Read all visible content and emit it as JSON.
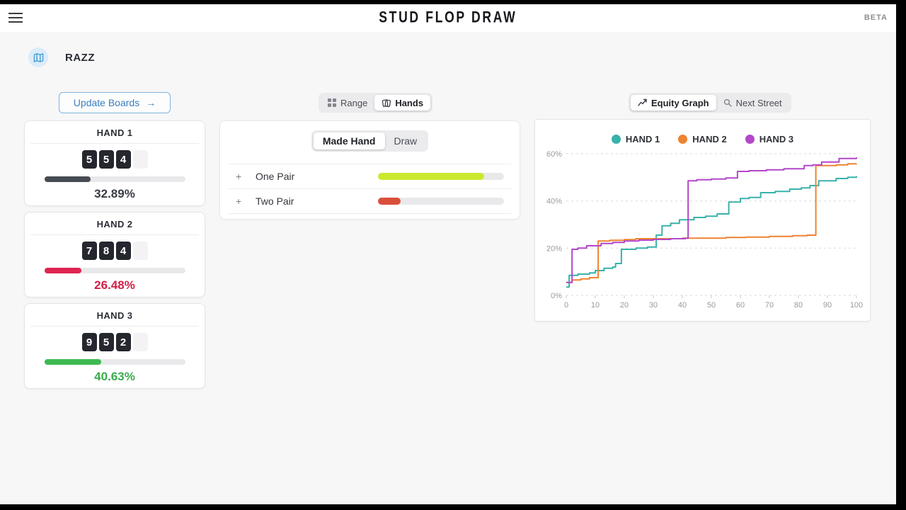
{
  "header": {
    "title": "STUD FLOP DRAW",
    "beta_label": "BETA"
  },
  "game": {
    "label": "RAZZ"
  },
  "toolbar": {
    "update_boards_label": "Update Boards",
    "update_boards_arrow": "→",
    "view_toggle": {
      "options": [
        {
          "label": "Range",
          "icon": "grid-icon",
          "active": false
        },
        {
          "label": "Hands",
          "icon": "cards-icon",
          "active": true
        }
      ]
    },
    "graph_toggle": {
      "options": [
        {
          "label": "Equity Graph",
          "icon": "trend-chart-icon",
          "active": true
        },
        {
          "label": "Next Street",
          "icon": "search-icon",
          "active": false
        }
      ]
    }
  },
  "hands": [
    {
      "name": "HAND 1",
      "cards": [
        "5",
        "5",
        "4"
      ],
      "hidden_cards": 1,
      "equity": "32.89%",
      "equity_value": 32.89,
      "bar_color": "#474c53",
      "text_color": "#383d44"
    },
    {
      "name": "HAND 2",
      "cards": [
        "7",
        "8",
        "4"
      ],
      "hidden_cards": 1,
      "equity": "26.48%",
      "equity_value": 26.48,
      "bar_color": "#df2450",
      "text_color": "#d01f48"
    },
    {
      "name": "HAND 3",
      "cards": [
        "9",
        "5",
        "2"
      ],
      "hidden_cards": 1,
      "equity": "40.63%",
      "equity_value": 40.63,
      "bar_color": "#3eba51",
      "text_color": "#3aab4f"
    }
  ],
  "made_hands_panel": {
    "tabs": [
      {
        "label": "Made Hand",
        "active": true
      },
      {
        "label": "Draw",
        "active": false
      }
    ],
    "rows": [
      {
        "expand": "+",
        "label": "One Pair",
        "bar_pct": 84,
        "bar_color": "#cbe92e"
      },
      {
        "expand": "+",
        "label": "Two Pair",
        "bar_pct": 18,
        "bar_color": "#da4f3c"
      }
    ]
  },
  "chart_data": {
    "type": "line",
    "subtype": "step",
    "title": "",
    "xlabel": "",
    "ylabel": "",
    "xlim": [
      0,
      100
    ],
    "ylim": [
      0,
      60
    ],
    "x_ticks": [
      0,
      10,
      20,
      30,
      40,
      50,
      60,
      70,
      80,
      90,
      100
    ],
    "y_tick_values": [
      0,
      20,
      40,
      60
    ],
    "y_tick_labels": [
      "0%",
      "20%",
      "40%",
      "60%"
    ],
    "grid": "horizontal-dashed",
    "legend_position": "top-center",
    "series": [
      {
        "name": "HAND 1",
        "color": "#38b2ab",
        "points": [
          [
            0,
            3.5
          ],
          [
            1,
            8.5
          ],
          [
            4,
            9
          ],
          [
            8,
            9.5
          ],
          [
            10,
            10.5
          ],
          [
            13,
            11.5
          ],
          [
            16,
            12
          ],
          [
            17,
            13.5
          ],
          [
            19,
            19.5
          ],
          [
            24,
            20
          ],
          [
            28,
            20.5
          ],
          [
            31,
            25.5
          ],
          [
            33,
            29.5
          ],
          [
            36,
            30.5
          ],
          [
            39,
            32
          ],
          [
            44,
            33
          ],
          [
            48,
            33.5
          ],
          [
            52,
            34.5
          ],
          [
            56,
            39.5
          ],
          [
            60,
            41
          ],
          [
            63,
            41.5
          ],
          [
            67,
            43.5
          ],
          [
            72,
            44
          ],
          [
            77,
            45
          ],
          [
            81,
            45.5
          ],
          [
            84,
            46.5
          ],
          [
            87,
            48.5
          ],
          [
            93,
            49.5
          ],
          [
            97,
            50
          ],
          [
            100,
            50.5
          ]
        ]
      },
      {
        "name": "HAND 2",
        "color": "#ee8330",
        "points": [
          [
            0,
            5.5
          ],
          [
            2,
            6.5
          ],
          [
            5,
            7
          ],
          [
            8,
            7.5
          ],
          [
            11,
            23
          ],
          [
            15,
            23.3
          ],
          [
            20,
            23.6
          ],
          [
            24,
            24
          ],
          [
            40,
            24.2
          ],
          [
            55,
            24.5
          ],
          [
            62,
            24.7
          ],
          [
            70,
            25
          ],
          [
            78,
            25.3
          ],
          [
            83,
            25.5
          ],
          [
            86,
            55
          ],
          [
            93,
            55.3
          ],
          [
            97,
            55.7
          ],
          [
            100,
            55.8
          ]
        ]
      },
      {
        "name": "HAND 3",
        "color": "#b247c9",
        "points": [
          [
            0,
            5.5
          ],
          [
            2,
            19.5
          ],
          [
            4,
            20
          ],
          [
            7,
            21
          ],
          [
            12,
            22
          ],
          [
            16,
            22.4
          ],
          [
            20,
            23
          ],
          [
            25,
            23.4
          ],
          [
            30,
            23.7
          ],
          [
            36,
            24
          ],
          [
            41,
            24.2
          ],
          [
            42,
            48.5
          ],
          [
            45,
            49
          ],
          [
            50,
            49.3
          ],
          [
            55,
            49.7
          ],
          [
            59,
            52.5
          ],
          [
            63,
            52.8
          ],
          [
            69,
            53.2
          ],
          [
            75,
            53.6
          ],
          [
            82,
            55
          ],
          [
            85,
            55.3
          ],
          [
            88,
            56.5
          ],
          [
            94,
            58
          ],
          [
            100,
            58.4
          ]
        ]
      }
    ]
  }
}
